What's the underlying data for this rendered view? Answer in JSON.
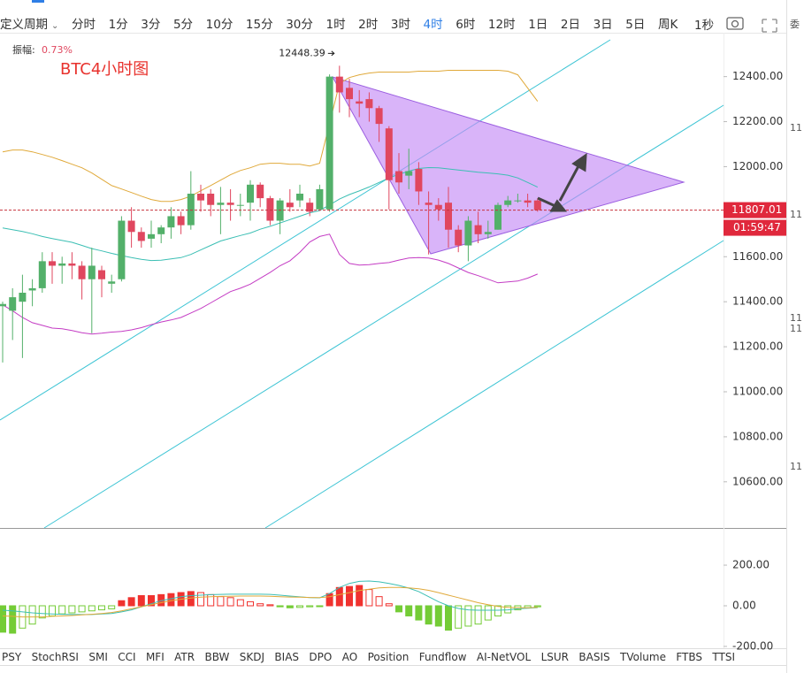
{
  "toolbar": {
    "period": "定义周期",
    "intervals": [
      "分时",
      "1分",
      "3分",
      "5分",
      "10分",
      "15分",
      "30分",
      "1时",
      "2时",
      "3时",
      "4时",
      "6时",
      "12时",
      "1日",
      "2日",
      "3日",
      "5日",
      "周K"
    ],
    "active_index": 10,
    "right": "1秒"
  },
  "tabs": [
    "PSY",
    "StochRSI",
    "SMI",
    "CCI",
    "MFI",
    "ATR",
    "BBW",
    "SKDJ",
    "BIAS",
    "DPO",
    "AO",
    "Position",
    "Fundflow",
    "AI-NetVOL",
    "LSUR",
    "BASIS",
    "TVolume",
    "FTBS",
    "TTSI"
  ],
  "right_strip": [
    "委",
    "11",
    "11",
    "11",
    "11",
    "11"
  ],
  "chart_data": [
    {
      "type": "candlestick",
      "title": "BTC4小时图",
      "amplitude_label": "振幅:",
      "amplitude": "0.73%",
      "countdown": "01:59:47",
      "up_color": "#53b06a",
      "down_color": "#e0475f",
      "open": [
        11380,
        11360,
        11400,
        11450,
        11460,
        11580,
        11560,
        11570,
        11560,
        11500,
        11540,
        11480,
        11500,
        11760,
        11710,
        11680,
        11700,
        11730,
        11780,
        11740,
        11880,
        11880,
        11830,
        11840,
        11830,
        11840,
        11920,
        11860,
        11760,
        11840,
        11850,
        11840,
        11810,
        11810,
        12400,
        12350,
        12290,
        12300,
        12260,
        12170,
        11980,
        11960,
        11990,
        11840,
        11830,
        11840,
        11720,
        11650,
        11740,
        11700,
        11720,
        11830,
        11850,
        11850,
        11850
      ],
      "high": [
        11400,
        11460,
        11520,
        11500,
        11620,
        11620,
        11600,
        11620,
        11580,
        11640,
        11560,
        11520,
        11780,
        11820,
        11730,
        11760,
        11740,
        11820,
        11800,
        11980,
        11920,
        11900,
        11910,
        11900,
        11880,
        11940,
        11930,
        11870,
        11860,
        11900,
        11920,
        11860,
        11920,
        12410,
        12448.39,
        12390,
        12340,
        12330,
        12270,
        12180,
        12060,
        12080,
        12020,
        11890,
        11860,
        11910,
        11740,
        11780,
        11800,
        11760,
        11840,
        11870,
        11880,
        11880,
        11860
      ],
      "low": [
        11130,
        11230,
        11150,
        11380,
        11440,
        11480,
        11480,
        11500,
        11410,
        11260,
        11420,
        11440,
        11490,
        11640,
        11640,
        11640,
        11660,
        11680,
        11700,
        11720,
        11800,
        11780,
        11700,
        11760,
        11780,
        11760,
        11820,
        11740,
        11700,
        11800,
        11820,
        11780,
        11810,
        11800,
        12240,
        12220,
        12220,
        12200,
        12110,
        11810,
        11880,
        11900,
        11830,
        11610,
        11760,
        11640,
        11620,
        11580,
        11660,
        11680,
        11720,
        11820,
        11840,
        11820,
        11800
      ],
      "close": [
        11390,
        11420,
        11440,
        11460,
        11580,
        11560,
        11570,
        11560,
        11500,
        11560,
        11500,
        11490,
        11760,
        11710,
        11670,
        11700,
        11730,
        11780,
        11740,
        11880,
        11850,
        11830,
        11840,
        11830,
        11830,
        11920,
        11860,
        11760,
        11850,
        11820,
        11880,
        11800,
        11900,
        12400,
        12330,
        12300,
        12280,
        12260,
        12190,
        11940,
        11930,
        11980,
        11890,
        11830,
        11810,
        11720,
        11650,
        11760,
        11700,
        11710,
        11830,
        11850,
        11850,
        11840,
        11807.01
      ],
      "lines": [
        {
          "color": "#e0a93a",
          "values": [
            12066,
            12074,
            12074,
            12066,
            12054,
            12042,
            12027,
            12011,
            11995,
            11972,
            11944,
            11916,
            11901,
            11885,
            11869,
            11854,
            11846,
            11846,
            11854,
            11869,
            11893,
            11916,
            11940,
            11964,
            11983,
            11995,
            12011,
            12015,
            12015,
            12011,
            12011,
            12003,
            12015,
            12192,
            12369,
            12396,
            12408,
            12416,
            12420,
            12420,
            12420,
            12420,
            12424,
            12424,
            12424,
            12428,
            12428,
            12428,
            12428,
            12428,
            12428,
            12424,
            12408,
            12349,
            12290
          ]
        },
        {
          "color": "#3cbfb4",
          "values": [
            11728,
            11720,
            11712,
            11702,
            11690,
            11681,
            11672,
            11664,
            11650,
            11636,
            11626,
            11615,
            11605,
            11596,
            11588,
            11583,
            11584,
            11590,
            11596,
            11610,
            11630,
            11650,
            11670,
            11682,
            11694,
            11705,
            11722,
            11735,
            11750,
            11765,
            11780,
            11795,
            11805,
            11830,
            11856,
            11876,
            11892,
            11910,
            11930,
            11950,
            11966,
            11980,
            11992,
            11996,
            11995,
            11990,
            11985,
            11980,
            11975,
            11972,
            11968,
            11962,
            11950,
            11930,
            11909
          ]
        },
        {
          "color": "#c43cc4",
          "values": [
            11386,
            11360,
            11330,
            11307,
            11295,
            11283,
            11280,
            11272,
            11262,
            11256,
            11260,
            11265,
            11268,
            11275,
            11285,
            11298,
            11310,
            11319,
            11330,
            11350,
            11370,
            11395,
            11420,
            11445,
            11460,
            11478,
            11504,
            11530,
            11560,
            11582,
            11620,
            11665,
            11690,
            11700,
            11610,
            11570,
            11563,
            11565,
            11570,
            11574,
            11585,
            11594,
            11596,
            11594,
            11585,
            11570,
            11550,
            11530,
            11516,
            11500,
            11484,
            11488,
            11492,
            11505,
            11523
          ]
        }
      ],
      "ylim": [
        10395,
        12595
      ],
      "yticks": [
        {
          "value": 12400,
          "label": "12400.00"
        },
        {
          "value": 12200,
          "label": "12200.00"
        },
        {
          "value": 12000,
          "label": "12000.00"
        },
        {
          "value": 11600,
          "label": "11600.00"
        },
        {
          "value": 11400,
          "label": "11400.00"
        },
        {
          "value": 11200,
          "label": "11200.00"
        },
        {
          "value": 11000,
          "label": "11000.00"
        },
        {
          "value": 10800,
          "label": "10800.00"
        },
        {
          "value": 10600,
          "label": "10600.00"
        }
      ]
    },
    {
      "type": "bar",
      "up_color": "#f0322f",
      "down_color": "#74cc36",
      "values": [
        -130,
        -135,
        -110,
        -90,
        -60,
        -50,
        -40,
        -35,
        -30,
        -25,
        -20,
        -15,
        25,
        40,
        50,
        50,
        55,
        60,
        65,
        70,
        65,
        55,
        45,
        40,
        30,
        20,
        10,
        5,
        -5,
        -10,
        -8,
        -5,
        -3,
        60,
        90,
        95,
        100,
        80,
        45,
        10,
        -30,
        -50,
        -70,
        -90,
        -100,
        -120,
        -110,
        -100,
        -90,
        -70,
        -50,
        -35,
        -20,
        -10,
        -5
      ],
      "lines": [
        {
          "color": "#3cbfb4",
          "values": [
            -22,
            -25,
            -30,
            -35,
            -38,
            -40,
            -42,
            -43,
            -43,
            -43,
            -40,
            -38,
            -30,
            -20,
            -5,
            10,
            25,
            35,
            45,
            50,
            52,
            55,
            56,
            57,
            57,
            57,
            57,
            56,
            52,
            48,
            44,
            40,
            39,
            60,
            90,
            110,
            120,
            122,
            118,
            110,
            100,
            87,
            70,
            45,
            20,
            0,
            -13,
            -20,
            -22,
            -22,
            -22,
            -20,
            -15,
            -12,
            -9
          ]
        },
        {
          "color": "#e0a93a",
          "values": [
            -50,
            -52,
            -55,
            -55,
            -55,
            -52,
            -50,
            -48,
            -45,
            -42,
            -38,
            -33,
            -25,
            -15,
            -5,
            5,
            15,
            25,
            32,
            38,
            42,
            45,
            46,
            47,
            48,
            48,
            48,
            47,
            45,
            43,
            42,
            41,
            40,
            45,
            55,
            65,
            75,
            82,
            88,
            90,
            90,
            88,
            84,
            76,
            65,
            52,
            40,
            28,
            15,
            5,
            -3,
            -8,
            -10,
            -10,
            -8
          ]
        }
      ],
      "ylim": [
        -209,
        370
      ],
      "yticks": [
        {
          "value": 200,
          "label": "200.00"
        },
        {
          "value": 0,
          "label": "0.00"
        },
        {
          "value": -200,
          "label": "-200.00"
        }
      ]
    }
  ]
}
